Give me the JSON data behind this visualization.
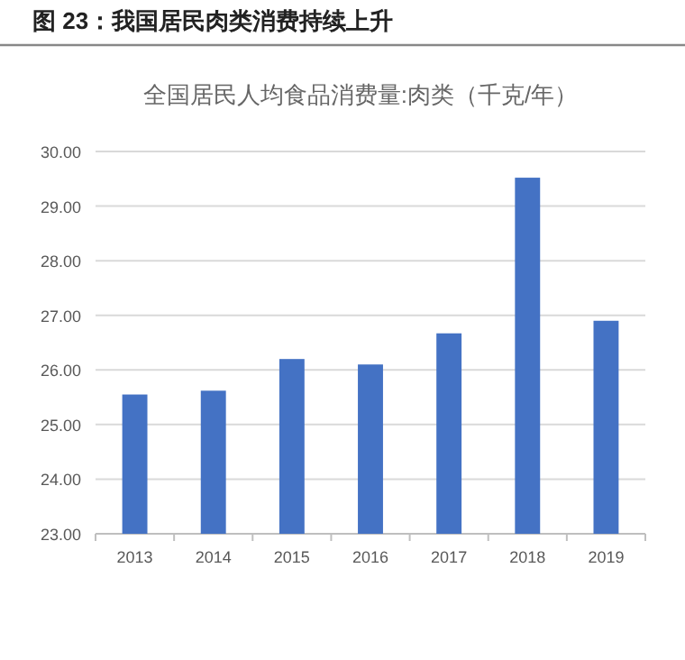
{
  "chart_data": {
    "type": "bar",
    "title": "图 23：我国居民肉类消费持续上升",
    "subtitle": "全国居民人均食品消费量:肉类（千克/年）",
    "categories": [
      "2013",
      "2014",
      "2015",
      "2016",
      "2017",
      "2018",
      "2019"
    ],
    "values": [
      25.55,
      25.62,
      26.2,
      26.1,
      26.67,
      29.52,
      26.9
    ],
    "color": "#4472c4",
    "ylim": [
      23,
      30
    ],
    "yticks": [
      {
        "value": 23,
        "label": "23.00"
      },
      {
        "value": 24,
        "label": "24.00"
      },
      {
        "value": 25,
        "label": "25.00"
      },
      {
        "value": 26,
        "label": "26.00"
      },
      {
        "value": 27,
        "label": "27.00"
      },
      {
        "value": 28,
        "label": "28.00"
      },
      {
        "value": 29,
        "label": "29.00"
      },
      {
        "value": 30,
        "label": "30.00"
      }
    ],
    "grid": "y"
  }
}
